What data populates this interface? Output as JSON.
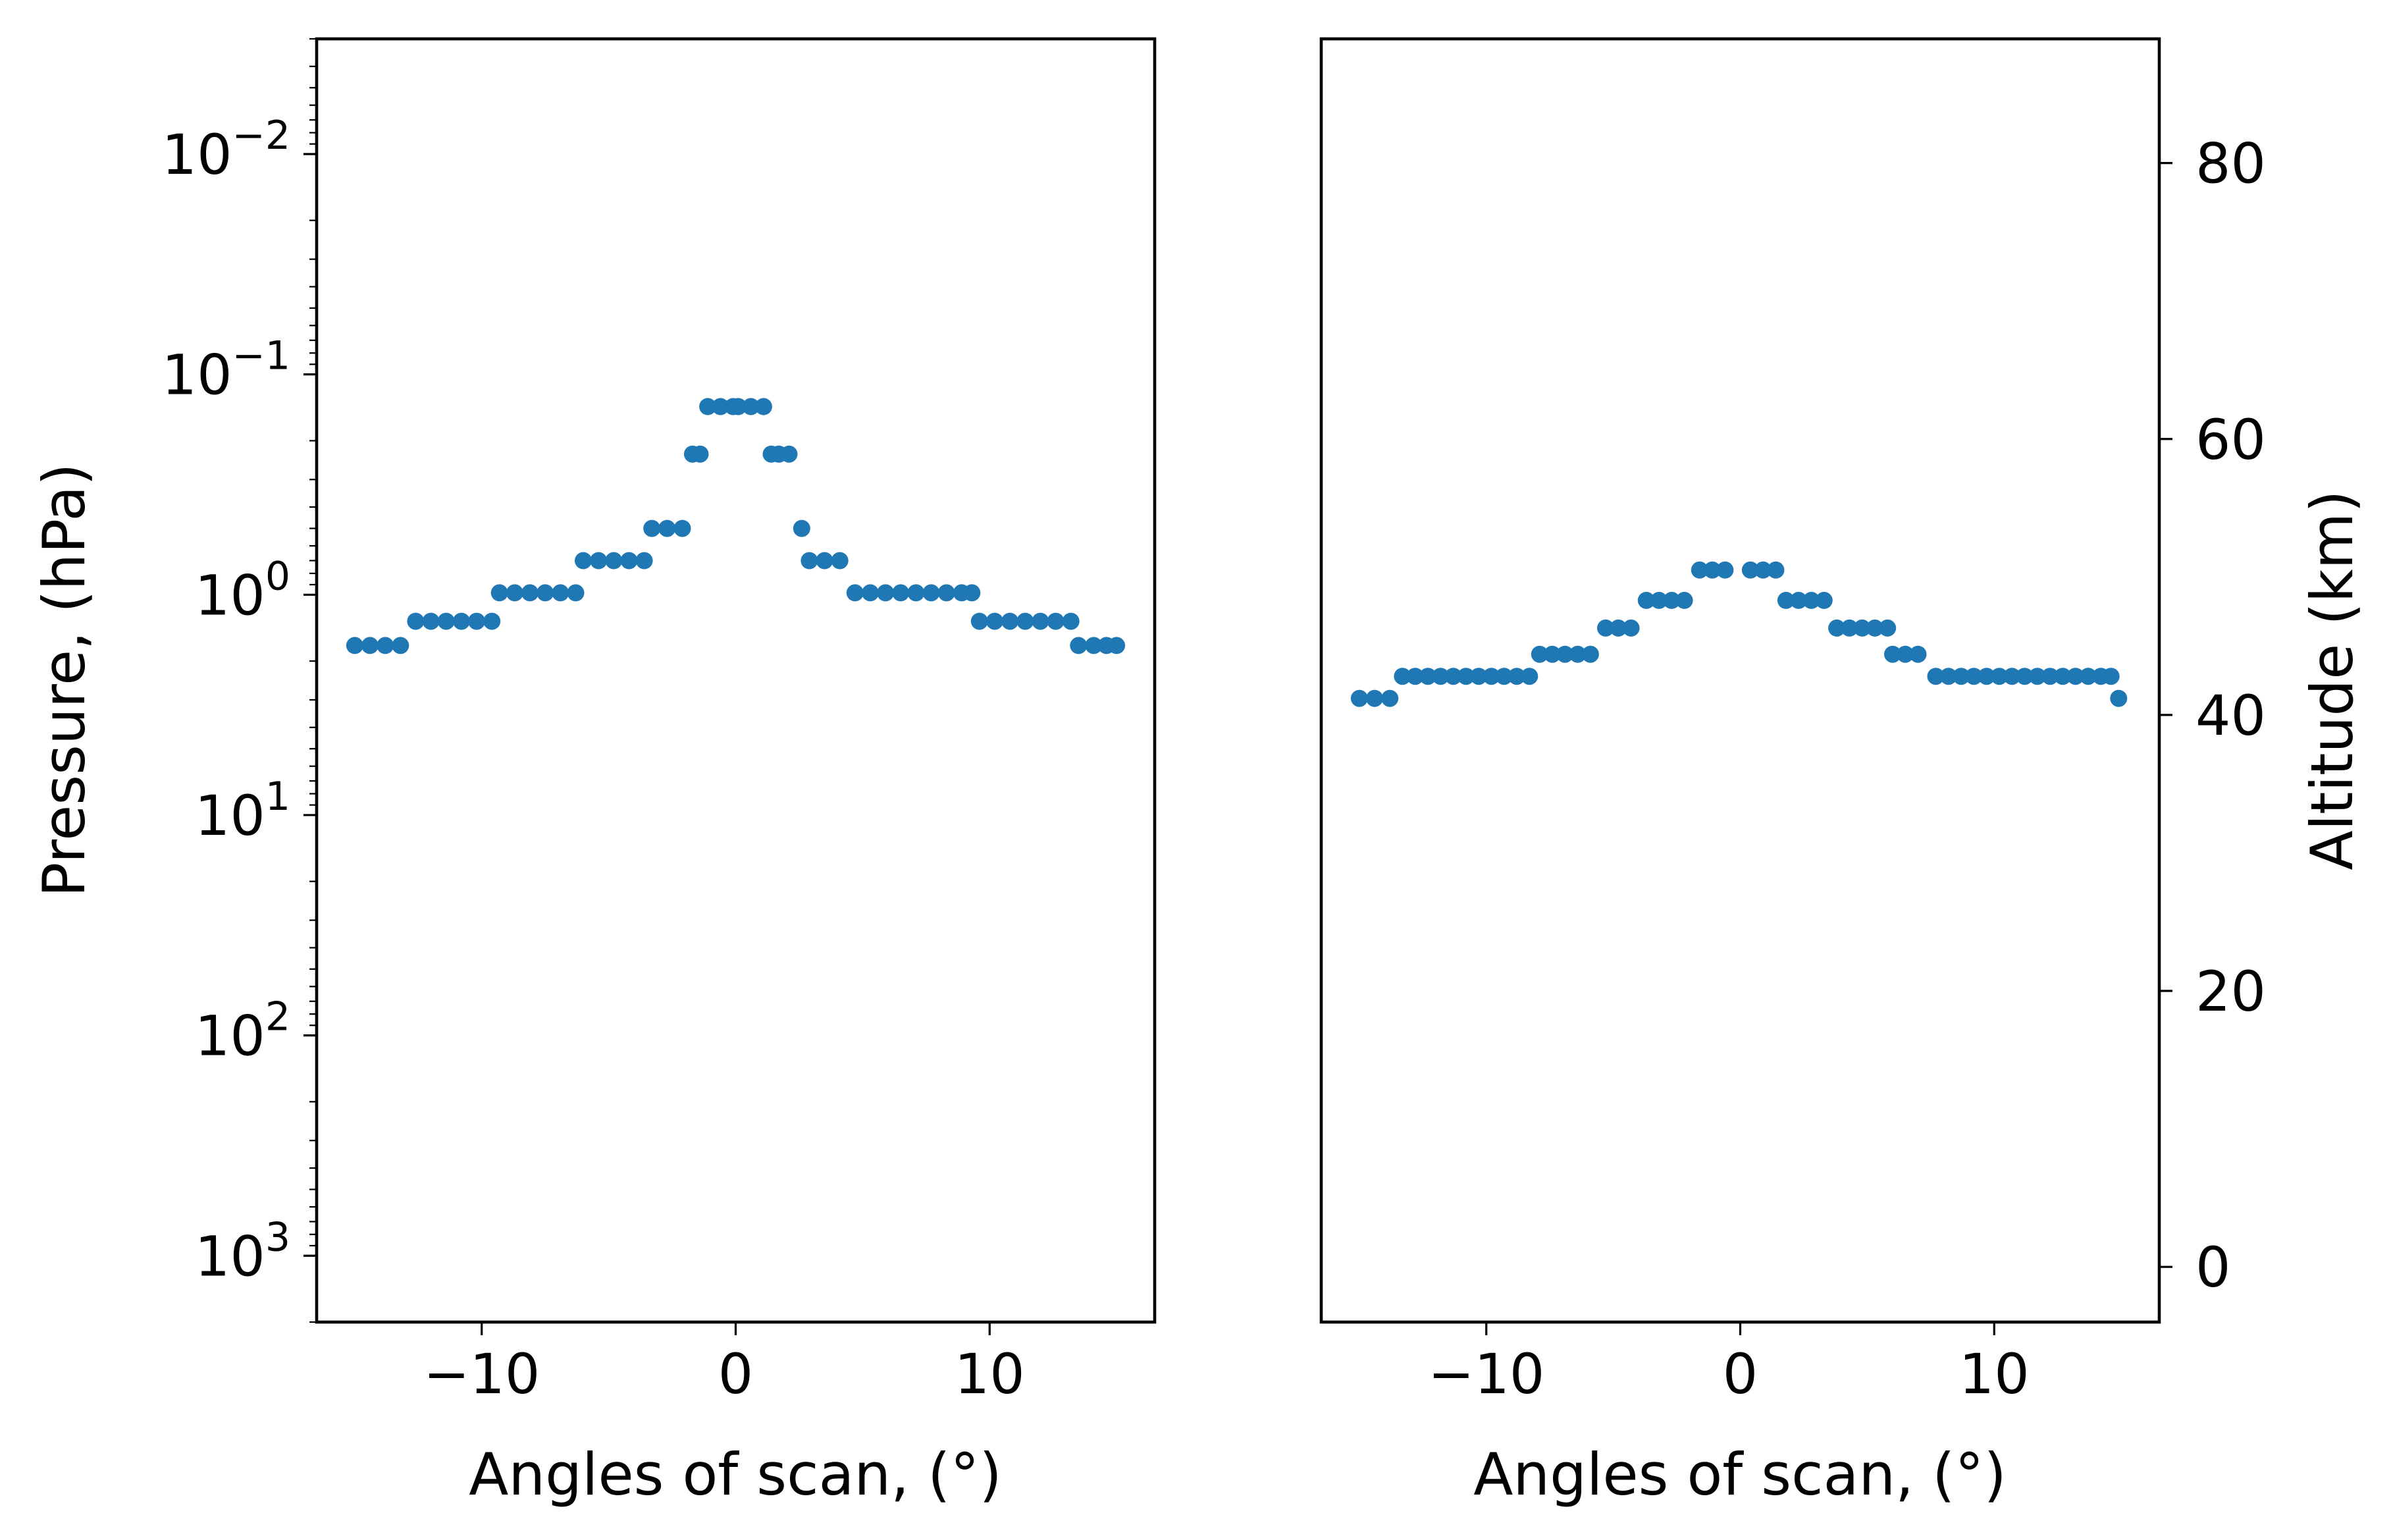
{
  "chart_data": [
    {
      "type": "scatter",
      "xlabel": "Angles of scan, (°)",
      "ylabel": "Pressure, (hPa)",
      "y_scale": "log",
      "y_inverted": true,
      "xlim": [
        -16.5,
        16.5
      ],
      "ylim": [
        2000,
        0.003
      ],
      "x_ticks": [
        -10,
        0,
        10
      ],
      "x_tick_labels": [
        "−10",
        "0",
        "10"
      ],
      "y_ticks": [
        {
          "value": 0.01,
          "base": "10",
          "exp": "−2"
        },
        {
          "value": 0.1,
          "base": "10",
          "exp": "−1"
        },
        {
          "value": 1,
          "base": "10",
          "exp": "0"
        },
        {
          "value": 10,
          "base": "10",
          "exp": "1"
        },
        {
          "value": 100,
          "base": "10",
          "exp": "2"
        },
        {
          "value": 1000,
          "base": "10",
          "exp": "3"
        }
      ],
      "grid": false,
      "marker_color": "#1f77b4",
      "series": [
        {
          "points": [
            [
              -15,
              1.7
            ],
            [
              -14.4,
              1.7
            ],
            [
              -13.8,
              1.7
            ],
            [
              -13.2,
              1.7
            ],
            [
              -12.6,
              1.32
            ],
            [
              -12,
              1.32
            ],
            [
              -11.4,
              1.32
            ],
            [
              -10.8,
              1.32
            ],
            [
              -10.2,
              1.32
            ],
            [
              -9.6,
              1.32
            ],
            [
              -9.3,
              0.98
            ],
            [
              -8.7,
              0.98
            ],
            [
              -8.1,
              0.98
            ],
            [
              -7.5,
              0.98
            ],
            [
              -6.9,
              0.98
            ],
            [
              -6.3,
              0.98
            ],
            [
              -6,
              0.7
            ],
            [
              -5.4,
              0.7
            ],
            [
              -4.8,
              0.7
            ],
            [
              -4.2,
              0.7
            ],
            [
              -3.6,
              0.7
            ],
            [
              -3.3,
              0.5
            ],
            [
              -2.7,
              0.5
            ],
            [
              -2.1,
              0.5
            ],
            [
              -1.7,
              0.23
            ],
            [
              -1.4,
              0.23
            ],
            [
              -1.1,
              0.14
            ],
            [
              -0.6,
              0.14
            ],
            [
              -0.1,
              0.14
            ],
            [
              0.1,
              0.14
            ],
            [
              0.6,
              0.14
            ],
            [
              1.1,
              0.14
            ],
            [
              1.4,
              0.23
            ],
            [
              1.7,
              0.23
            ],
            [
              2.1,
              0.23
            ],
            [
              2.6,
              0.5
            ],
            [
              2.9,
              0.7
            ],
            [
              3.5,
              0.7
            ],
            [
              4.1,
              0.7
            ],
            [
              4.7,
              0.98
            ],
            [
              5.3,
              0.98
            ],
            [
              5.9,
              0.98
            ],
            [
              6.5,
              0.98
            ],
            [
              7.1,
              0.98
            ],
            [
              7.7,
              0.98
            ],
            [
              8.3,
              0.98
            ],
            [
              8.9,
              0.98
            ],
            [
              9.3,
              0.98
            ],
            [
              9.6,
              1.32
            ],
            [
              10.2,
              1.32
            ],
            [
              10.8,
              1.32
            ],
            [
              11.4,
              1.32
            ],
            [
              12,
              1.32
            ],
            [
              12.6,
              1.32
            ],
            [
              13.2,
              1.32
            ],
            [
              13.5,
              1.7
            ],
            [
              14.1,
              1.7
            ],
            [
              14.6,
              1.7
            ],
            [
              15,
              1.7
            ]
          ]
        }
      ]
    },
    {
      "type": "scatter",
      "xlabel": "Angles of scan, (°)",
      "ylabel": "Altitude (km)",
      "y_axis_side": "right",
      "xlim": [
        -16.5,
        16.5
      ],
      "ylim": [
        -4,
        89
      ],
      "x_ticks": [
        -10,
        0,
        10
      ],
      "x_tick_labels": [
        "−10",
        "0",
        "10"
      ],
      "y_ticks": [
        0,
        20,
        40,
        60,
        80
      ],
      "y_tick_labels": [
        "0",
        "20",
        "40",
        "60",
        "80"
      ],
      "grid": false,
      "marker_color": "#1f77b4",
      "series": [
        {
          "points": [
            [
              -15,
              41.2
            ],
            [
              -14.4,
              41.2
            ],
            [
              -13.8,
              41.2
            ],
            [
              -13.3,
              42.8
            ],
            [
              -12.8,
              42.8
            ],
            [
              -12.3,
              42.8
            ],
            [
              -11.8,
              42.8
            ],
            [
              -11.3,
              42.8
            ],
            [
              -10.8,
              42.8
            ],
            [
              -10.3,
              42.8
            ],
            [
              -9.8,
              42.8
            ],
            [
              -9.3,
              42.8
            ],
            [
              -8.8,
              42.8
            ],
            [
              -8.3,
              42.8
            ],
            [
              -7.9,
              44.4
            ],
            [
              -7.4,
              44.4
            ],
            [
              -6.9,
              44.4
            ],
            [
              -6.4,
              44.4
            ],
            [
              -5.9,
              44.4
            ],
            [
              -5.3,
              46.3
            ],
            [
              -4.8,
              46.3
            ],
            [
              -4.3,
              46.3
            ],
            [
              -3.7,
              48.3
            ],
            [
              -3.2,
              48.3
            ],
            [
              -2.7,
              48.3
            ],
            [
              -2.2,
              48.3
            ],
            [
              -1.6,
              50.5
            ],
            [
              -1.1,
              50.5
            ],
            [
              -0.6,
              50.5
            ],
            [
              0.4,
              50.5
            ],
            [
              0.9,
              50.5
            ],
            [
              1.4,
              50.5
            ],
            [
              1.8,
              48.3
            ],
            [
              2.3,
              48.3
            ],
            [
              2.8,
              48.3
            ],
            [
              3.3,
              48.3
            ],
            [
              3.8,
              46.3
            ],
            [
              4.3,
              46.3
            ],
            [
              4.8,
              46.3
            ],
            [
              5.3,
              46.3
            ],
            [
              5.8,
              46.3
            ],
            [
              6,
              44.4
            ],
            [
              6.5,
              44.4
            ],
            [
              7,
              44.4
            ],
            [
              7.7,
              42.8
            ],
            [
              8.2,
              42.8
            ],
            [
              8.7,
              42.8
            ],
            [
              9.2,
              42.8
            ],
            [
              9.7,
              42.8
            ],
            [
              10.2,
              42.8
            ],
            [
              10.7,
              42.8
            ],
            [
              11.2,
              42.8
            ],
            [
              11.7,
              42.8
            ],
            [
              12.2,
              42.8
            ],
            [
              12.7,
              42.8
            ],
            [
              13.2,
              42.8
            ],
            [
              13.7,
              42.8
            ],
            [
              14.2,
              42.8
            ],
            [
              14.6,
              42.8
            ],
            [
              14.9,
              41.2
            ]
          ]
        }
      ]
    }
  ]
}
